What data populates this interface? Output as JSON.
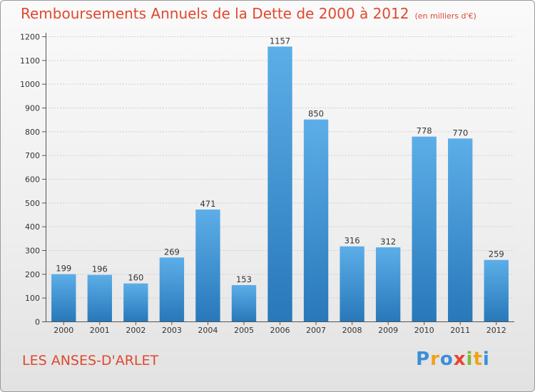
{
  "chart_data": {
    "type": "bar",
    "title": "Remboursements Annuels de la Dette de 2000 à 2012",
    "subtitle": "(en milliers d'€)",
    "categories": [
      "2000",
      "2001",
      "2002",
      "2003",
      "2004",
      "2005",
      "2006",
      "2007",
      "2008",
      "2009",
      "2010",
      "2011",
      "2012"
    ],
    "values": [
      199,
      196,
      160,
      269,
      471,
      153,
      1157,
      850,
      316,
      312,
      778,
      770,
      259
    ],
    "ylim": [
      0,
      1200
    ],
    "yticks": [
      0,
      100,
      200,
      300,
      400,
      500,
      600,
      700,
      800,
      900,
      1000,
      1100,
      1200
    ],
    "xlabel": "",
    "ylabel": "",
    "grid": true
  },
  "commune": "LES ANSES-D'ARLET",
  "logo": {
    "letters": [
      "P",
      "r",
      "o",
      "x",
      "i",
      "t",
      "i"
    ],
    "colors": [
      "#3b8fd8",
      "#f0a21a",
      "#3b8fd8",
      "#e8432f",
      "#7cbb35",
      "#f0a21a",
      "#3b8fd8"
    ]
  },
  "colors": {
    "bar_top": "#5caee8",
    "bar_bottom": "#2878ba",
    "title": "#e0482e"
  }
}
